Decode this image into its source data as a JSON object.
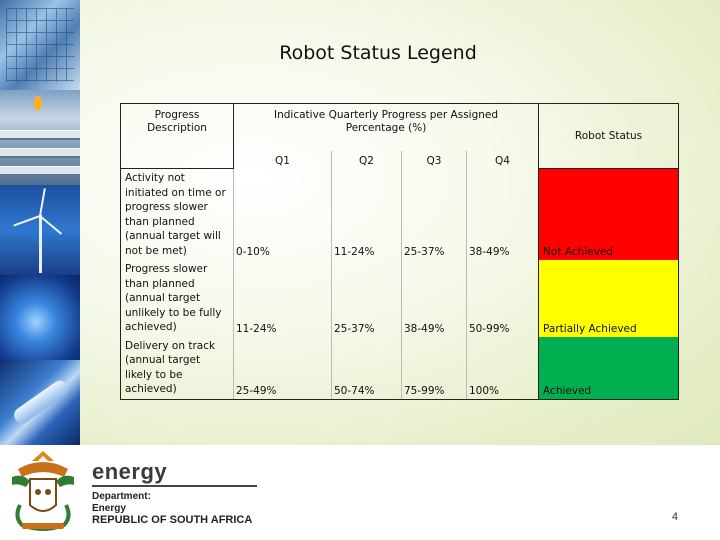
{
  "title": "Robot Status Legend",
  "table": {
    "header_progress": "Progress\nDescription",
    "header_indicative": "Indicative Quarterly Progress per Assigned\nPercentage (%)",
    "header_status": "Robot Status",
    "quarters": [
      "Q1",
      "Q2",
      "Q3",
      "Q4"
    ],
    "rows": [
      {
        "description": "Activity not initiated on time or progress slower than planned (annual target will not be met)",
        "q1": "0-10%",
        "q2": "11-24%",
        "q3": "25-37%",
        "q4": "38-49%",
        "status": "Not Achieved",
        "color": "#ff0000"
      },
      {
        "description": "Progress slower than planned (annual target unlikely to be fully achieved)",
        "q1": "11-24%",
        "q2": "25-37%",
        "q3": "38-49%",
        "q4": "50-99%",
        "status": "Partially Achieved",
        "color": "#ffff00"
      },
      {
        "description": "Delivery on track (annual target likely to be achieved)",
        "q1": "25-49%",
        "q2": "50-74%",
        "q3": "75-99%",
        "q4": "100%",
        "status": "Achieved",
        "color": "#00b050"
      }
    ]
  },
  "footer": {
    "energy_word": "energy",
    "department_line1": "Department:",
    "department_line2": "Energy",
    "department_line3": "REPUBLIC OF SOUTH AFRICA",
    "page_number": "4",
    "crest_icon": "coat-of-arms-icon"
  },
  "side_images": [
    "solar-panels-image",
    "gas-pipes-image",
    "wind-turbine-image",
    "gas-flame-image",
    "fluorescent-tube-image"
  ]
}
